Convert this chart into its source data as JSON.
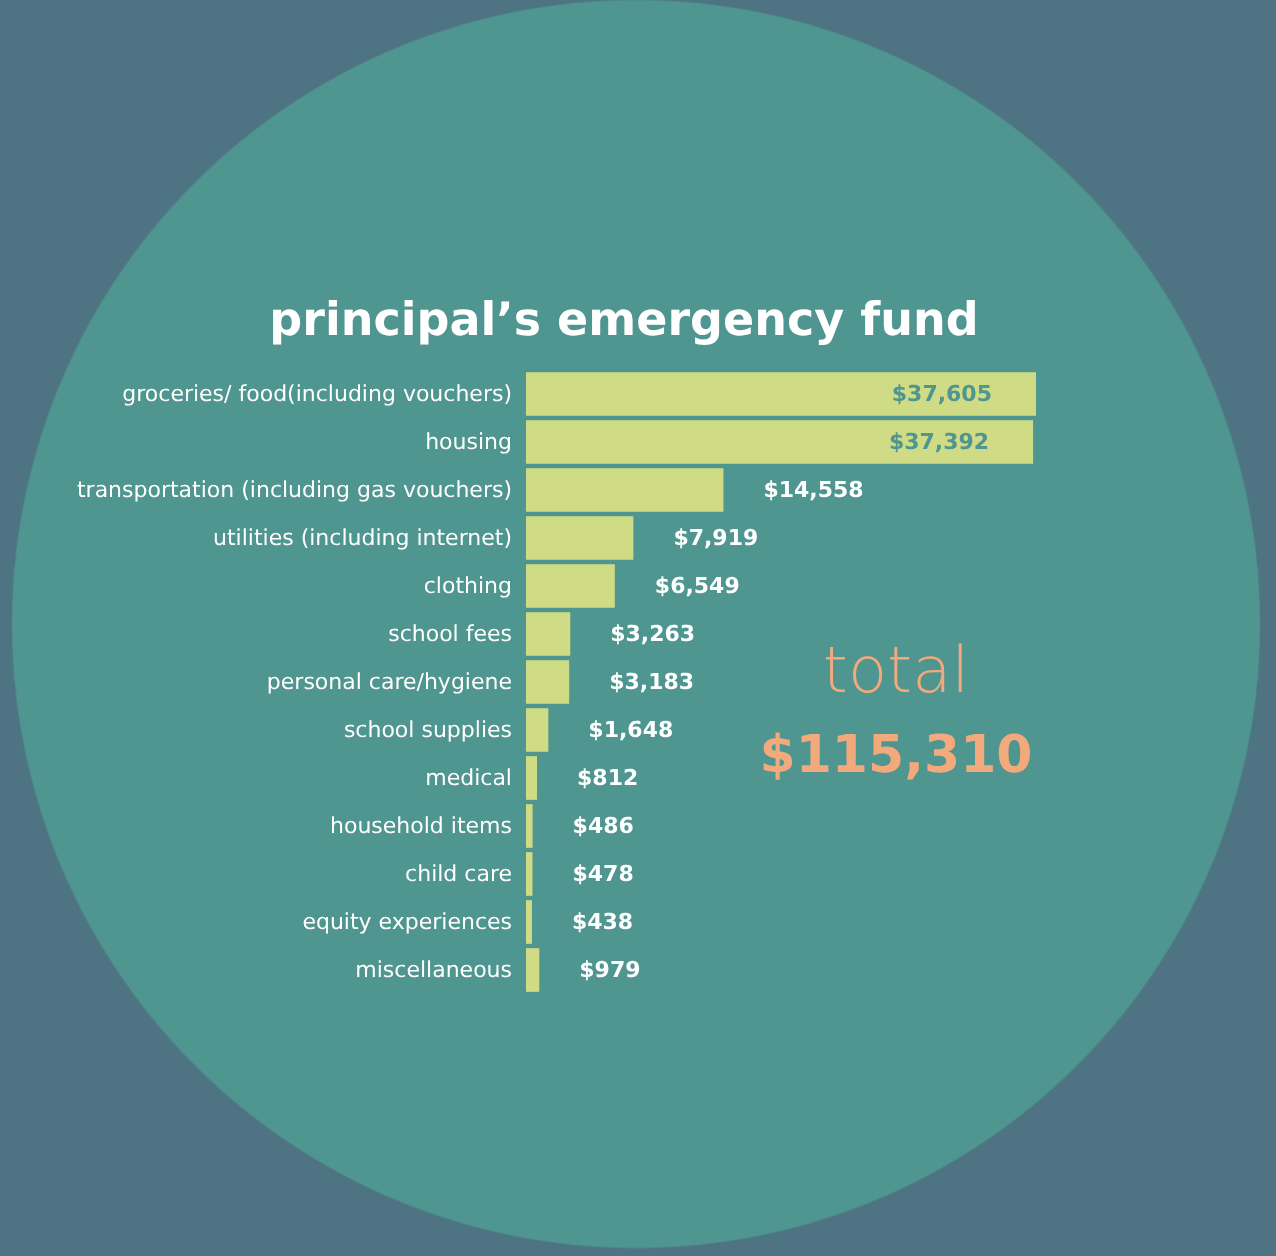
{
  "chart_data": {
    "type": "bar",
    "orientation": "horizontal",
    "title": "principal’s emergency fund",
    "categories": [
      "groceries/ food(including vouchers)",
      "housing",
      "transportation (including gas vouchers)",
      "utilities (including internet)",
      "clothing",
      "school fees",
      "personal care/hygiene",
      "school supplies",
      "medical",
      "household items",
      "child care",
      "equity experiences",
      "miscellaneous"
    ],
    "values": [
      37605,
      37392,
      14558,
      7919,
      6549,
      3263,
      3183,
      1648,
      812,
      486,
      478,
      438,
      979
    ],
    "color": "#d0dc85",
    "value_labels": [
      "$37,605",
      "$37,392",
      "$14,558",
      "$7,919",
      "$6,549",
      "$3,263",
      "$3,183",
      "$1,648",
      "$812",
      "$486",
      "$478",
      "$438",
      "$979"
    ],
    "annotations": [
      "total",
      "$115,310"
    ]
  }
}
